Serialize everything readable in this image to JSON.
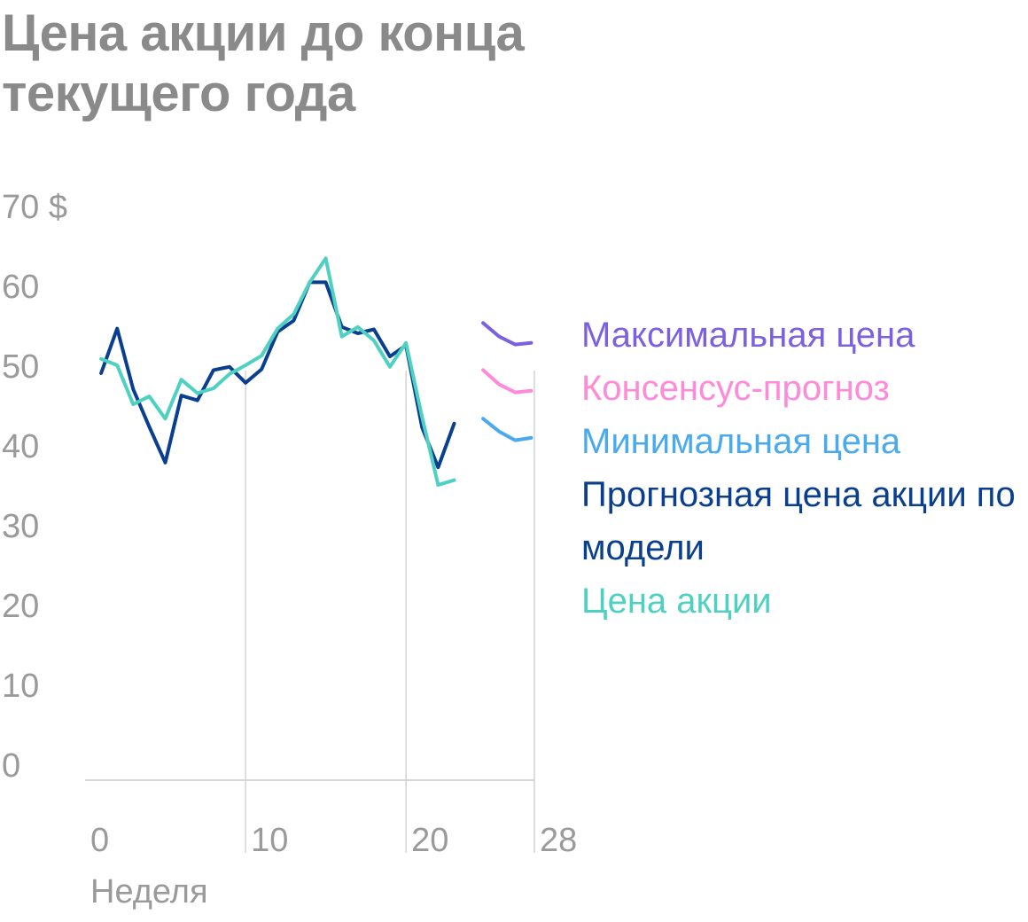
{
  "title_line1": "Цена акции до конца",
  "title_line2": "текущего года",
  "chart_data": {
    "type": "line",
    "xlabel": "Неделя",
    "ylabel": "",
    "xlim": [
      0,
      28
    ],
    "ylim": [
      0,
      70
    ],
    "x_ticks": [
      "0",
      "10",
      "20",
      "28"
    ],
    "x_tick_values": [
      0,
      10,
      20,
      28
    ],
    "y_ticks": [
      "0",
      "10",
      "20",
      "30",
      "40",
      "50",
      "60",
      "70 $"
    ],
    "y_tick_values": [
      0,
      10,
      20,
      30,
      40,
      50,
      60,
      70
    ],
    "grid": "vertical lines at weeks 10, 20 and 28",
    "legend_position": "right",
    "series": [
      {
        "name": "Максимальная цена",
        "color": "#7b61e0",
        "x": [
          24.8,
          25.8,
          26.8,
          27.8
        ],
        "y": [
          57.3,
          55.6,
          54.6,
          54.8
        ]
      },
      {
        "name": "Консенсус-прогноз",
        "color": "#ff8ad8",
        "x": [
          24.8,
          25.8,
          26.8,
          27.8
        ],
        "y": [
          51.4,
          49.6,
          48.6,
          48.8
        ]
      },
      {
        "name": "Минимальная цена",
        "color": "#4aaaf0",
        "x": [
          24.8,
          25.8,
          26.8,
          27.8
        ],
        "y": [
          45.3,
          43.7,
          42.6,
          42.9
        ]
      },
      {
        "name": "Прогнозная цена акции по модели",
        "color": "#0a3f8f",
        "x": [
          1,
          2,
          3,
          4,
          5,
          6,
          7,
          8,
          9,
          10,
          11,
          12,
          13,
          14,
          15,
          16,
          17,
          18,
          19,
          20,
          21,
          22,
          23
        ],
        "y": [
          51,
          56.6,
          49,
          44.3,
          39.8,
          48.2,
          47.6,
          51.4,
          51.8,
          49.8,
          51.5,
          56.2,
          57.6,
          62.4,
          62.4,
          56.8,
          56,
          56.5,
          53.1,
          54.5,
          44.2,
          39.2,
          44.7
        ]
      },
      {
        "name": "Цена акции",
        "color": "#4fd1c1",
        "x": [
          1,
          2,
          3,
          4,
          5,
          6,
          7,
          8,
          9,
          10,
          11,
          12,
          13,
          14,
          15,
          16,
          17,
          18,
          19,
          20,
          21,
          22,
          23
        ],
        "y": [
          52.8,
          52,
          47.1,
          48.1,
          45.3,
          50.2,
          48.5,
          49.1,
          50.9,
          52,
          53.2,
          56.6,
          58.4,
          62.4,
          65.4,
          55.6,
          56.8,
          55.1,
          51.8,
          54.8,
          45.5,
          37,
          37.6
        ]
      }
    ]
  }
}
